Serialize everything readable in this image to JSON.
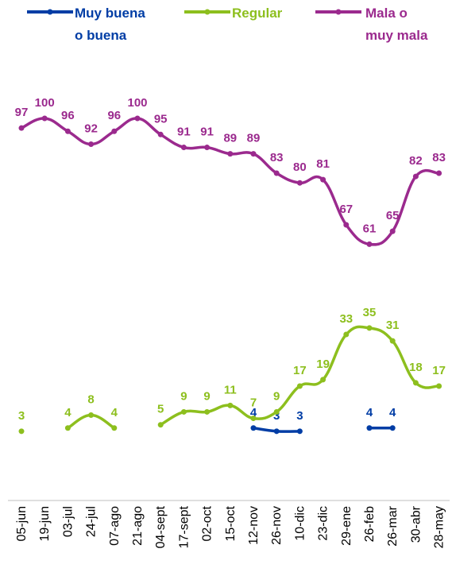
{
  "colors": {
    "muy_buena": "#003DA5",
    "regular": "#8DBF1E",
    "mala": "#9B2A8E"
  },
  "legend": {
    "muy_buena": [
      "Muy buena",
      "o buena"
    ],
    "regular": [
      "Regular"
    ],
    "mala": [
      "Mala o",
      "muy mala"
    ]
  },
  "chart_data": {
    "type": "line",
    "categories": [
      "05-jun",
      "19-jun",
      "03-jul",
      "24-jul",
      "07-ago",
      "21-ago",
      "04-sept",
      "17-sept",
      "02-oct",
      "15-oct",
      "12-nov",
      "26-nov",
      "10-dic",
      "23-dic",
      "29-ene",
      "26-feb",
      "26-mar",
      "30-abr",
      "28-may"
    ],
    "title": "",
    "xlabel": "",
    "ylabel": "",
    "legend_position": "top",
    "series": [
      {
        "name": "Muy buena o buena",
        "color_key": "muy_buena",
        "values": [
          null,
          null,
          null,
          null,
          null,
          null,
          null,
          null,
          null,
          null,
          4,
          3,
          3,
          null,
          null,
          4,
          4,
          null,
          null
        ],
        "labels": [
          null,
          null,
          null,
          null,
          null,
          null,
          null,
          null,
          null,
          null,
          "4",
          "3",
          "3",
          null,
          null,
          "4",
          "4",
          null,
          null
        ]
      },
      {
        "name": "Regular",
        "color_key": "regular",
        "values": [
          3,
          null,
          4,
          8,
          4,
          null,
          5,
          9,
          9,
          11,
          7,
          9,
          17,
          19,
          33,
          35,
          31,
          18,
          17
        ],
        "labels": [
          "3",
          null,
          "4",
          "8",
          "4",
          null,
          "5",
          "9",
          "9",
          "11",
          "7",
          "9",
          "17",
          "19",
          "33",
          "35",
          "31",
          "18",
          "17"
        ]
      },
      {
        "name": "Mala o muy mala",
        "color_key": "mala",
        "values": [
          97,
          100,
          96,
          92,
          96,
          100,
          95,
          91,
          91,
          89,
          89,
          83,
          80,
          81,
          67,
          61,
          65,
          82,
          83
        ],
        "labels": [
          "97",
          "100",
          "96",
          "92",
          "96",
          "100",
          "95",
          "91",
          "91",
          "89",
          "89",
          "83",
          "80",
          "81",
          "67",
          "61",
          "65",
          "82",
          "83"
        ]
      }
    ]
  }
}
